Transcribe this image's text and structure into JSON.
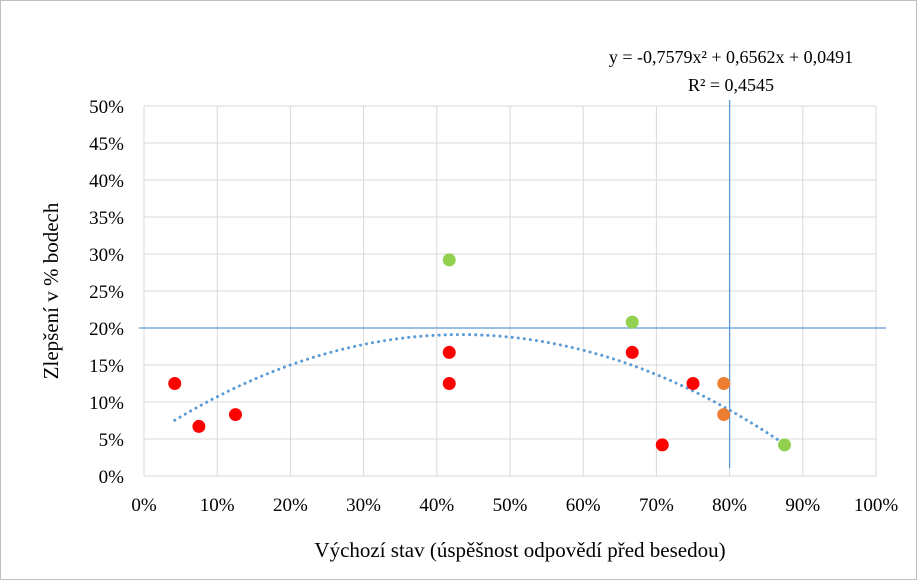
{
  "chart_data": {
    "type": "scatter",
    "title": "",
    "xlabel": "Výchozí stav (úspěšnost odpovědí před besedou)",
    "ylabel": "Zlepšení v % bodech",
    "xlim": [
      0,
      1
    ],
    "ylim": [
      0,
      0.5
    ],
    "x_ticks": [
      "0%",
      "10%",
      "20%",
      "30%",
      "40%",
      "50%",
      "60%",
      "70%",
      "80%",
      "90%",
      "100%"
    ],
    "y_ticks": [
      "0%",
      "5%",
      "10%",
      "15%",
      "20%",
      "25%",
      "30%",
      "35%",
      "40%",
      "45%",
      "50%"
    ],
    "grid": true,
    "reference_lines": {
      "x": 0.8,
      "y": 0.2,
      "color": "#5b9bd5"
    },
    "series": [
      {
        "color": "#ff0000",
        "points": [
          [
            0.042,
            0.125
          ],
          [
            0.075,
            0.067
          ],
          [
            0.125,
            0.083
          ],
          [
            0.417,
            0.167
          ],
          [
            0.417,
            0.125
          ],
          [
            0.667,
            0.167
          ],
          [
            0.708,
            0.042
          ],
          [
            0.75,
            0.125
          ]
        ]
      },
      {
        "color": "#92d050",
        "points": [
          [
            0.417,
            0.292
          ],
          [
            0.667,
            0.208
          ],
          [
            0.875,
            0.042
          ]
        ]
      },
      {
        "color": "#ed7d31",
        "points": [
          [
            0.792,
            0.125
          ],
          [
            0.792,
            0.083
          ]
        ]
      }
    ],
    "trendline": {
      "type": "polynomial",
      "coefficients": [
        -0.7579,
        0.6562,
        0.0491
      ],
      "x_range": [
        0.042,
        0.875
      ],
      "color": "#5b9bd5",
      "style": "dotted",
      "equation": "y = -0,7579x² + 0,6562x + 0,0491",
      "r_squared": "R² = 0,4545"
    }
  }
}
